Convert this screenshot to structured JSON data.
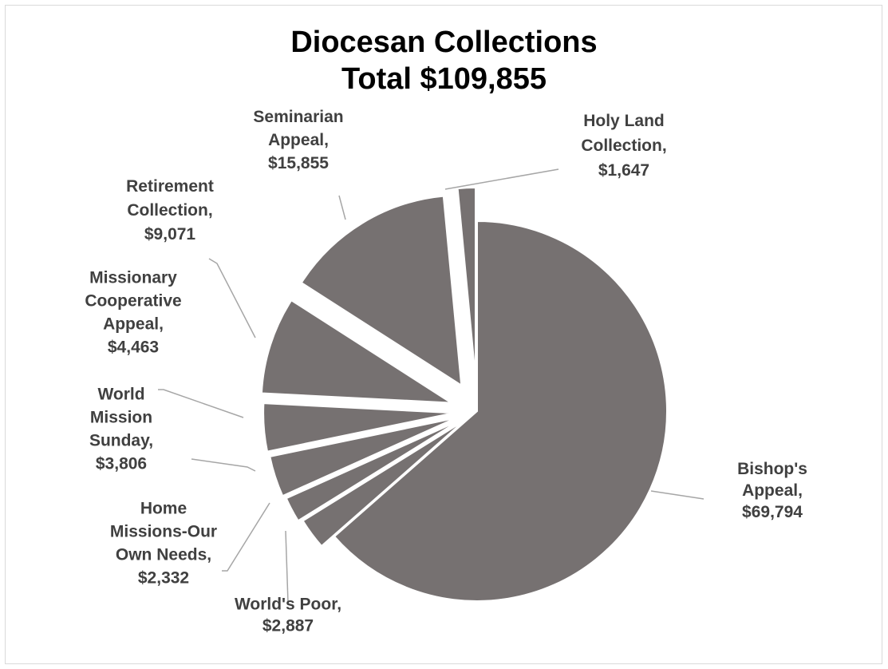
{
  "chart_data": {
    "type": "pie",
    "title": [
      "Diocesan Collections",
      "Total $109,855"
    ],
    "slices": [
      {
        "name": "Bishop's Appeal",
        "value": 69794,
        "value_label": "$69,794",
        "label_lines": [
          "Bishop's",
          "Appeal,",
          "$69,794"
        ]
      },
      {
        "name": "World's Poor",
        "value": 2887,
        "value_label": "$2,887",
        "label_lines": [
          "World's Poor,",
          "$2,887"
        ]
      },
      {
        "name": "Home Missions-Our Own Needs",
        "value": 2332,
        "value_label": "$2,332",
        "label_lines": [
          "Home",
          "Missions-Our",
          "Own Needs,",
          "$2,332"
        ]
      },
      {
        "name": "World Mission Sunday",
        "value": 3806,
        "value_label": "$3,806",
        "label_lines": [
          "World",
          "Mission",
          "Sunday,",
          "$3,806"
        ]
      },
      {
        "name": "Missionary Cooperative Appeal",
        "value": 4463,
        "value_label": "$4,463",
        "label_lines": [
          "Missionary",
          "Cooperative",
          "Appeal,",
          "$4,463"
        ]
      },
      {
        "name": "Retirement Collection",
        "value": 9071,
        "value_label": "$9,071",
        "label_lines": [
          "Retirement",
          "Collection,",
          "$9,071"
        ]
      },
      {
        "name": "Seminarian Appeal",
        "value": 15855,
        "value_label": "$15,855",
        "label_lines": [
          "Seminarian",
          "Appeal,",
          "$15,855"
        ]
      },
      {
        "name": "Holy Land Collection",
        "value": 1647,
        "value_label": "$1,647",
        "label_lines": [
          "Holy Land",
          "Collection,",
          "$1,647"
        ]
      }
    ],
    "slice_color": "#767171",
    "label_color": "#404040",
    "leader_color": "#a6a6a6",
    "legend": "none"
  }
}
